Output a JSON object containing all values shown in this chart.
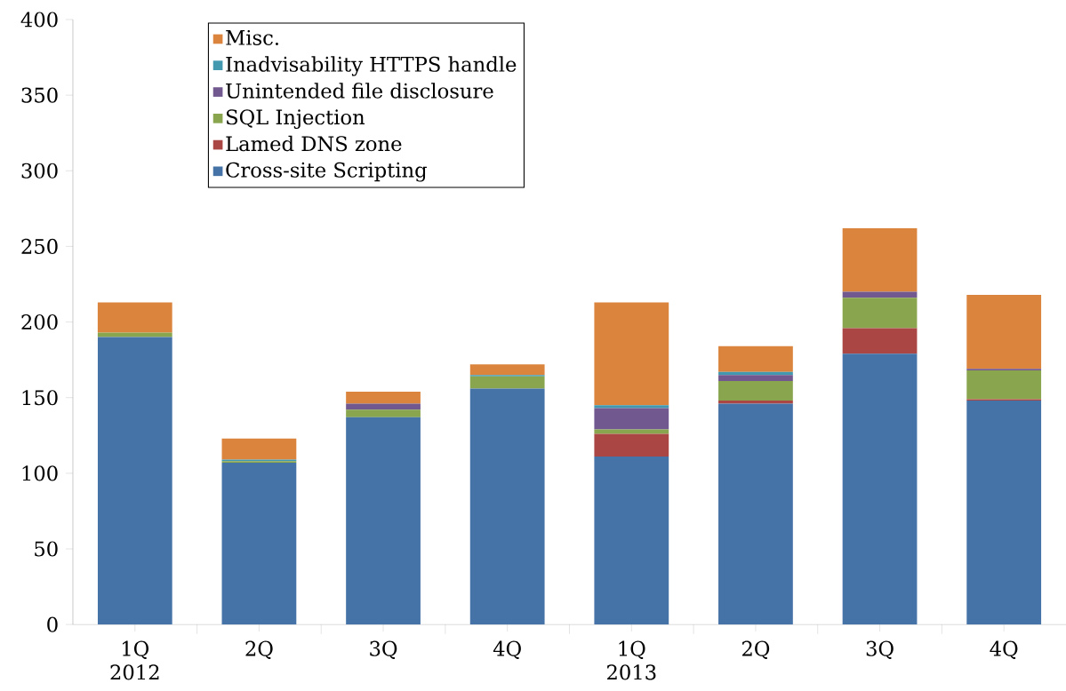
{
  "chart_data": {
    "type": "bar",
    "stacked": true,
    "categories": [
      "1Q 2012",
      "2Q",
      "3Q",
      "4Q",
      "1Q 2013",
      "2Q",
      "3Q",
      "4Q"
    ],
    "series": [
      {
        "name": "Cross-site Scripting",
        "color": "#4572a7",
        "values": [
          190,
          107,
          137,
          156,
          111,
          146,
          179,
          148
        ]
      },
      {
        "name": "Lamed DNS zone",
        "color": "#aa4643",
        "values": [
          0,
          0,
          0,
          0,
          15,
          2,
          17,
          1
        ]
      },
      {
        "name": "SQL Injection",
        "color": "#89a54e",
        "values": [
          3,
          1,
          5,
          8,
          3,
          13,
          20,
          19
        ]
      },
      {
        "name": "Unintended file disclosure",
        "color": "#71588f",
        "values": [
          0,
          0,
          4,
          0,
          14,
          4,
          4,
          1
        ]
      },
      {
        "name": "Inadvisability HTTPS handle",
        "color": "#4198af",
        "values": [
          0,
          1,
          0,
          1,
          2,
          2,
          0,
          0
        ]
      },
      {
        "name": "Misc.",
        "color": "#db843d",
        "values": [
          20,
          14,
          8,
          7,
          68,
          17,
          42,
          49
        ]
      }
    ],
    "ylim": [
      0,
      400
    ],
    "yticks": [
      0,
      50,
      100,
      150,
      200,
      250,
      300,
      350,
      400
    ],
    "legend": "top left",
    "grid": false
  }
}
